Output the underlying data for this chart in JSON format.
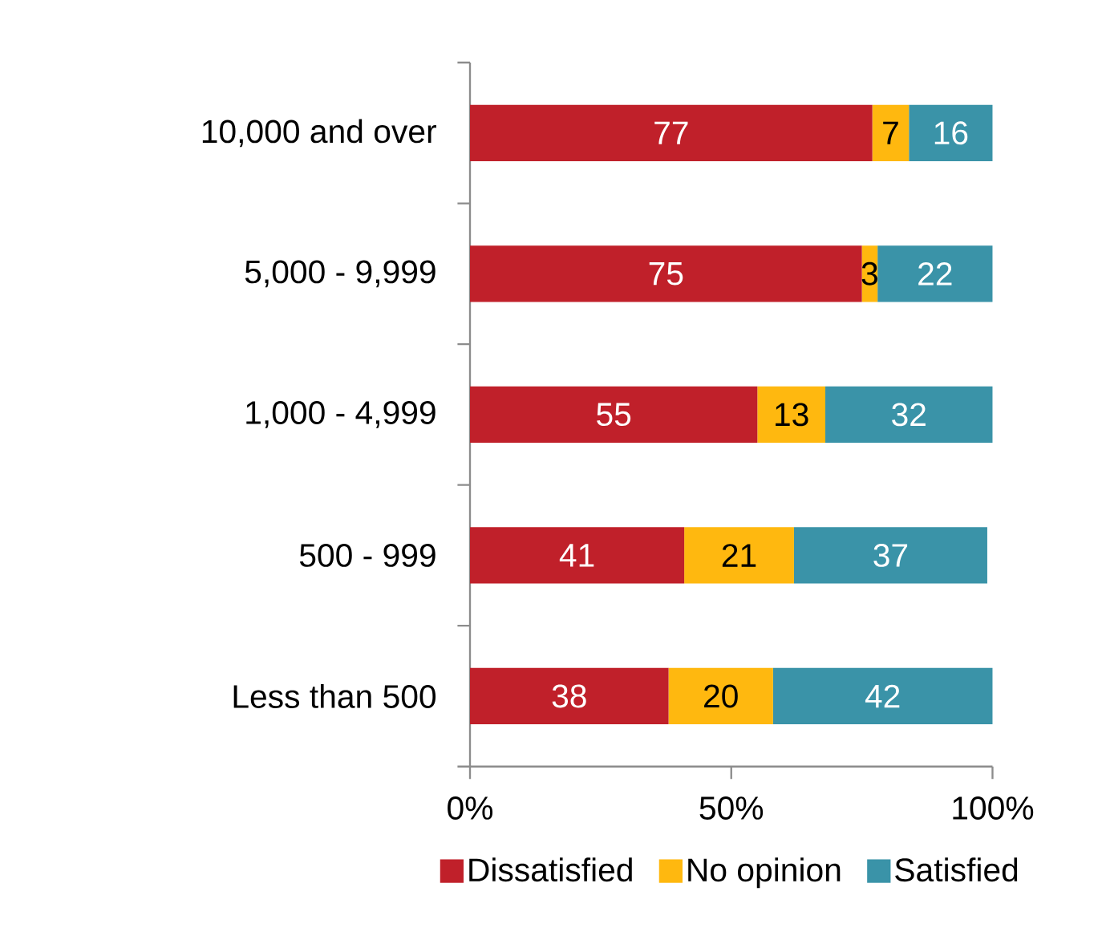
{
  "chart_data": {
    "type": "bar",
    "orientation": "horizontal",
    "stacked": true,
    "categories": [
      "10,000 and over",
      "5,000 - 9,999",
      "1,000 - 4,999",
      "500 - 999",
      "Less than 500"
    ],
    "series": [
      {
        "name": "Dissatisfied",
        "color": "#c0202a",
        "values": [
          77,
          75,
          55,
          41,
          38
        ]
      },
      {
        "name": "No opinion",
        "color": "#ffb80f",
        "values": [
          7,
          3,
          13,
          21,
          20
        ]
      },
      {
        "name": "Satisfied",
        "color": "#3a93a8",
        "values": [
          16,
          22,
          32,
          37,
          42
        ]
      }
    ],
    "xlim": [
      0,
      100
    ],
    "xticks": [
      {
        "value": 0,
        "label": "0%"
      },
      {
        "value": 50,
        "label": "50%"
      },
      {
        "value": 100,
        "label": "100%"
      }
    ],
    "data_labels": true,
    "legend": "bottom",
    "grid": false
  }
}
